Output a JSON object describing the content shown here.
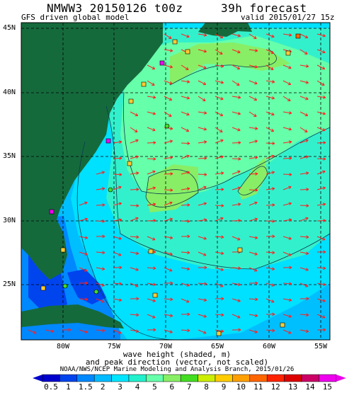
{
  "header": {
    "title_left": "NMWW3 20150126 t00z",
    "title_right": "39h forecast",
    "subtitle_left": "GFS driven global model",
    "subtitle_right": "valid 2015/01/27 15z"
  },
  "axes": {
    "lat_labels": [
      "45N",
      "40N",
      "35N",
      "30N",
      "25N"
    ],
    "lon_labels": [
      "80W",
      "75W",
      "70W",
      "65W",
      "60W",
      "55W"
    ]
  },
  "caption": {
    "line1": "wave height (shaded, m)",
    "line2": "and peak direction (vector, not scaled)",
    "agency": "NOAA/NWS/NCEP Marine Modeling and Analysis Branch, 2015/01/26"
  },
  "legend": {
    "ticks": [
      "0.5",
      "1",
      "1.5",
      "2",
      "3",
      "4",
      "5",
      "6",
      "7",
      "8",
      "9",
      "10",
      "11",
      "12",
      "13",
      "14",
      "15"
    ],
    "colors": [
      "#0000cc",
      "#0044ee",
      "#0088ff",
      "#00bbff",
      "#00e5ff",
      "#22f0cc",
      "#66ffaa",
      "#88ee66",
      "#44dd22",
      "#ccee00",
      "#ffcc00",
      "#ffa000",
      "#ff6600",
      "#ff2200",
      "#dd0000",
      "#cc0066",
      "#ee00ee"
    ]
  },
  "colors": {
    "land": "#156a3c",
    "ocean_deep": "#00bfff",
    "ocean_mid": "#00e0ff",
    "wave_4m": "#33f0cc",
    "wave_5m": "#66ffaa",
    "wave_6m": "#88ee66",
    "arrow": "#ff2020"
  }
}
